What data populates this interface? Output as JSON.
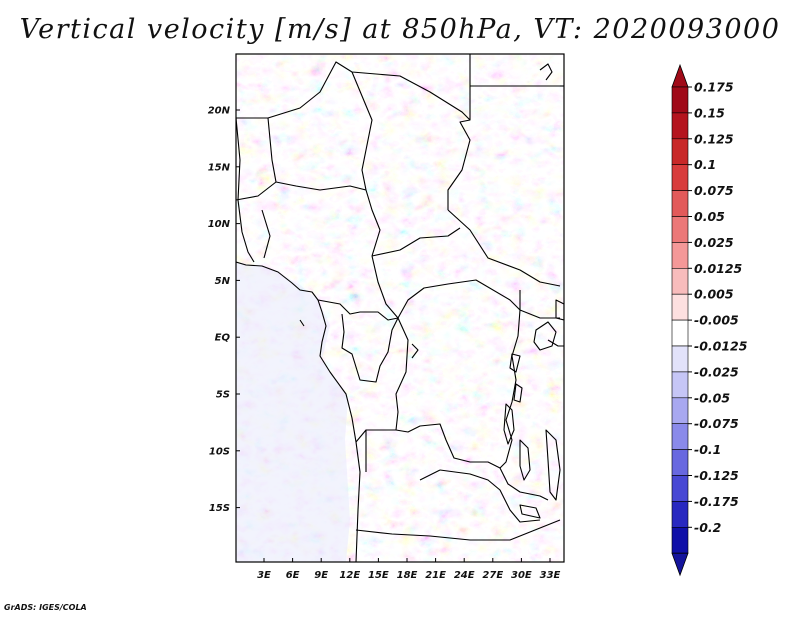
{
  "title": "Vertical velocity [m/s] at 850hPa, VT: 2020093000",
  "credit": "GrADS: IGES/COLA",
  "map": {
    "region": "Central Africa",
    "lon_ticks": [
      "3E",
      "6E",
      "9E",
      "12E",
      "15E",
      "18E",
      "21E",
      "24E",
      "27E",
      "30E",
      "33E"
    ],
    "lat_ticks": [
      "20N",
      "15N",
      "10N",
      "5N",
      "EQ",
      "5S",
      "10S",
      "15S"
    ]
  },
  "colorbar": {
    "labels": [
      "0.175",
      "0.15",
      "0.125",
      "0.1",
      "0.075",
      "0.05",
      "0.025",
      "0.0125",
      "0.005",
      "-0.005",
      "-0.0125",
      "-0.025",
      "-0.05",
      "-0.075",
      "-0.1",
      "-0.125",
      "-0.175",
      "-0.2"
    ],
    "colors": [
      "#a00a18",
      "#b4141e",
      "#c82828",
      "#d83c3c",
      "#e25a5a",
      "#ec7878",
      "#f49898",
      "#f8bcbc",
      "#fde0e0",
      "#ffffff",
      "#e2e2fa",
      "#c6c6f6",
      "#a8a8f0",
      "#8a8aea",
      "#6868e0",
      "#4848d4",
      "#2828c0",
      "#1010a8"
    ],
    "top_color": "#a00a18",
    "bottom_color": "#14149c"
  }
}
